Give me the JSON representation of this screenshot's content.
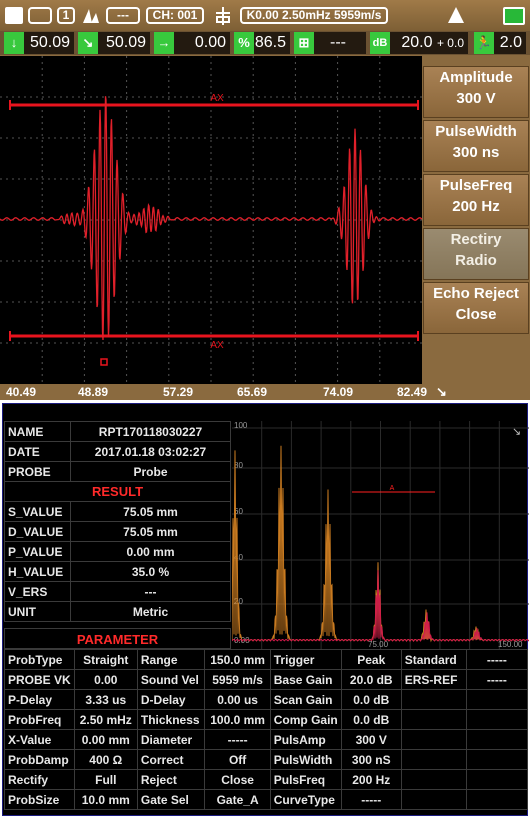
{
  "status_bar": {
    "channel_badge": "1",
    "mode_badge": "---",
    "channel": "CH: 001",
    "readout": "K0.00  2.50mHz  5959m/s"
  },
  "info_bar": {
    "items": [
      {
        "icon": "arrow-down-icon",
        "value": "50.09"
      },
      {
        "icon": "arrow-down-right-icon",
        "value": "50.09"
      },
      {
        "icon": "arrow-right-icon",
        "value": "0.00"
      },
      {
        "icon": "percent-icon",
        "value": "86.5"
      },
      {
        "icon": "gate-icon",
        "value": "---"
      },
      {
        "icon": "db-icon",
        "value": "20.0",
        "extra": "+ 0.0"
      },
      {
        "icon": "person-icon",
        "value": "2.0"
      }
    ]
  },
  "waveform": {
    "gate_label_top": "AX",
    "gate_label_bottom": "AX",
    "x_ticks": [
      "40.49",
      "48.89",
      "57.29",
      "65.69",
      "74.09",
      "82.49"
    ]
  },
  "side_menu": [
    {
      "line1": "Amplitude",
      "line2": "300 V"
    },
    {
      "line1": "PulseWidth",
      "line2": "300 ns"
    },
    {
      "line1": "PulseFreq",
      "line2": "200 Hz"
    },
    {
      "line1": "Rectiry",
      "line2": "Radio"
    },
    {
      "line1": "Echo Reject",
      "line2": "Close"
    }
  ],
  "report": {
    "info_rows": [
      {
        "key": "NAME",
        "value": "RPT170118030227"
      },
      {
        "key": "DATE",
        "value": "2017.01.18  03:02:27"
      },
      {
        "key": "PROBE",
        "value": "Probe"
      }
    ],
    "result_header": "RESULT",
    "result_rows": [
      {
        "key": "S_VALUE",
        "value": "75.05 mm"
      },
      {
        "key": "D_VALUE",
        "value": "75.05 mm"
      },
      {
        "key": "P_VALUE",
        "value": "0.00 mm"
      },
      {
        "key": "H_VALUE",
        "value": "35.0 %"
      },
      {
        "key": "V_ERS",
        "value": "---"
      },
      {
        "key": "UNIT",
        "value": "Metric"
      }
    ],
    "parameter_header": "PARAMETER",
    "parameter_rows": [
      [
        "ProbType",
        "Straight",
        "Range",
        "150.0 mm",
        "Trigger",
        "Peak",
        "Standard",
        "-----"
      ],
      [
        "PROBE VK",
        "0.00",
        "Sound Vel",
        "5959 m/s",
        "Base Gain",
        "20.0 dB",
        "ERS-REF",
        "-----"
      ],
      [
        "P-Delay",
        "3.33 us",
        "D-Delay",
        "0.00 us",
        "Scan Gain",
        "0.0 dB",
        "",
        ""
      ],
      [
        "ProbFreq",
        "2.50 mHz",
        "Thickness",
        "100.0 mm",
        "Comp Gain",
        "0.0 dB",
        "",
        ""
      ],
      [
        "X-Value",
        "0.00 mm",
        "Diameter",
        "-----",
        "PulsAmp",
        "300 V",
        "",
        ""
      ],
      [
        "ProbDamp",
        "400 Ω",
        "Correct",
        "Off",
        "PulsWidth",
        "300 nS",
        "",
        ""
      ],
      [
        "Rectify",
        "Full",
        "Reject",
        "Close",
        "PulsFreq",
        "200 Hz",
        "",
        ""
      ],
      [
        "ProbSize",
        "10.0 mm",
        "Gate Sel",
        "Gate_A",
        "CurveType",
        "-----",
        "",
        ""
      ]
    ],
    "chart": {
      "y_ticks": [
        "100",
        "80",
        "60",
        "40",
        "20",
        "0.00"
      ],
      "x_ticks": [
        "75.00",
        "150.00"
      ],
      "gate_label": "A"
    }
  },
  "colors": {
    "frame": "#8a6a3f",
    "trace": "#e0202a",
    "gate": "#e8141e",
    "echo_orange": "#c87a20",
    "menu_text": "#ffffff",
    "info_icon": "#38c93d"
  }
}
